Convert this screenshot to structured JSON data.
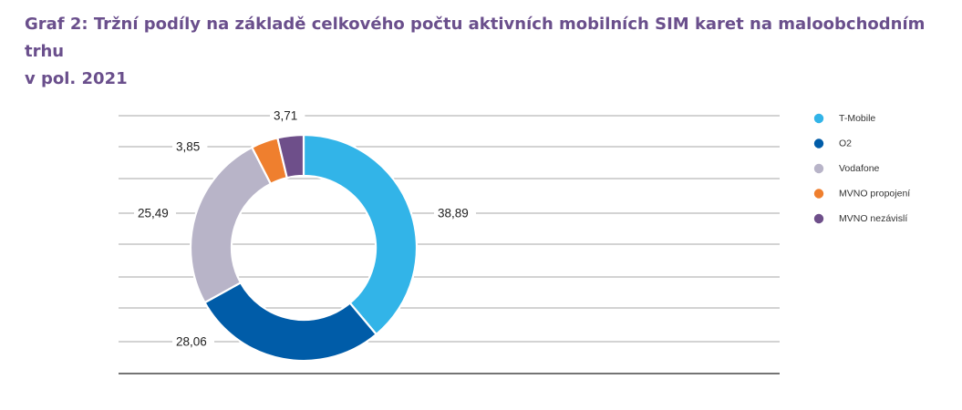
{
  "title": {
    "line1": "Graf 2: Tržní podíly na základě celkového počtu aktivních mobilních SIM karet na maloobchodním trhu",
    "line2": "v pol. 2021"
  },
  "chart_data": {
    "type": "pie",
    "donut": true,
    "categories": [
      "T-Mobile",
      "O2",
      "Vodafone",
      "MVNO propojení",
      "MVNO nezávislí"
    ],
    "values": [
      38.89,
      28.06,
      25.49,
      3.85,
      3.71
    ],
    "value_labels": [
      "38,89",
      "28,06",
      "25,49",
      "3,85",
      "3,71"
    ],
    "colors": [
      "#32b4e8",
      "#005ca8",
      "#b8b4c8",
      "#ef7f2e",
      "#6e4f8a"
    ],
    "legend_position": "right",
    "grid": true
  }
}
